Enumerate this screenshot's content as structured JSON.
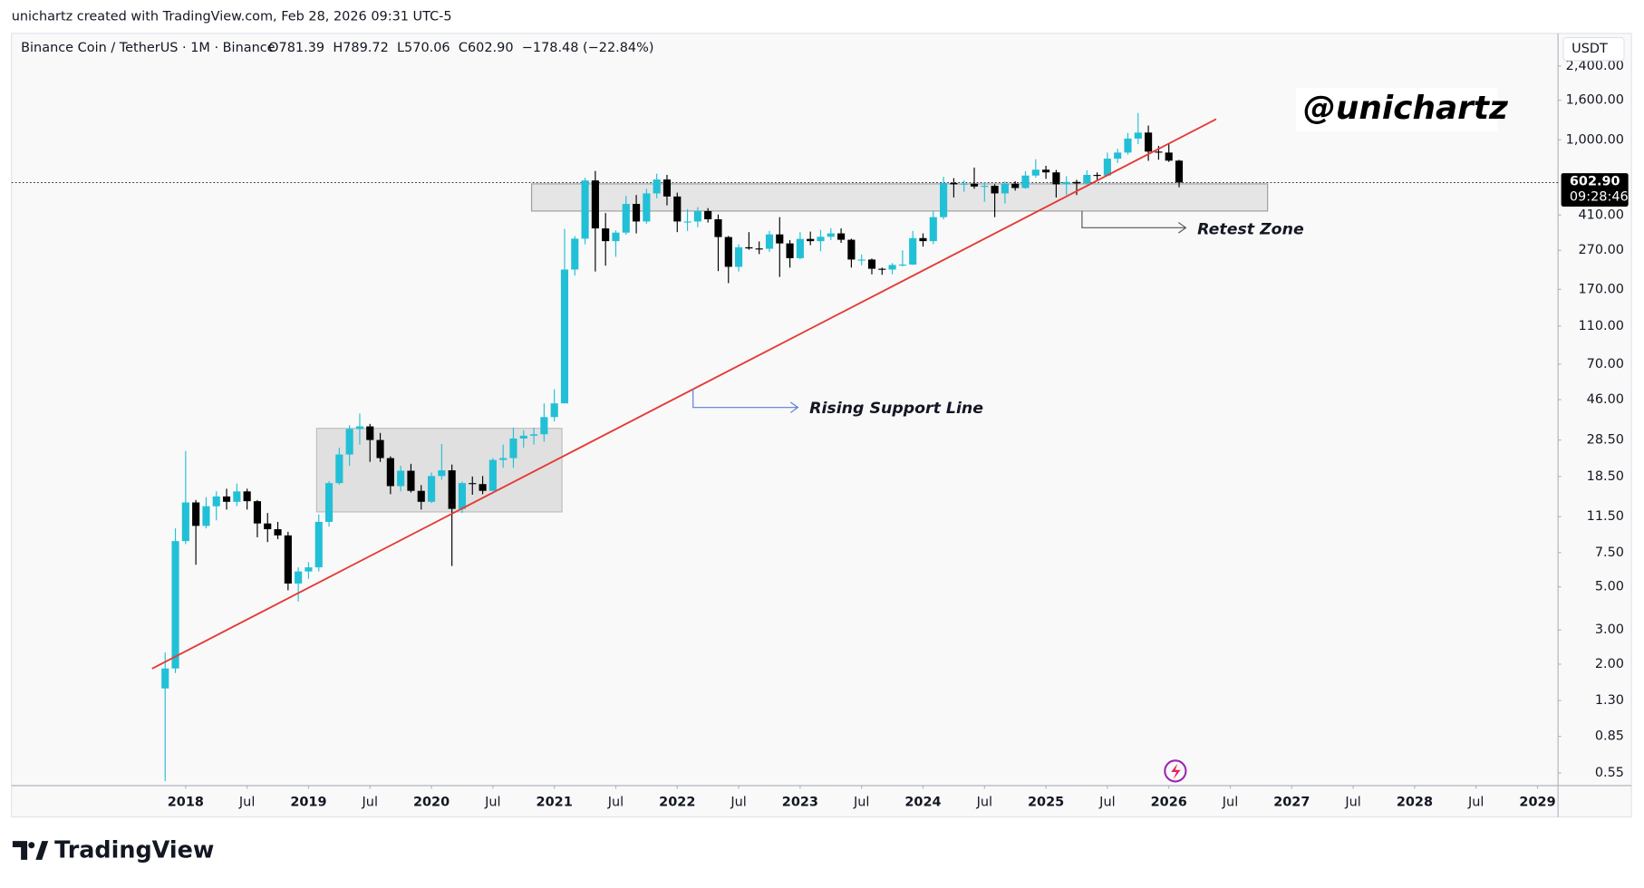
{
  "header": "unichartz created with TradingView.com, Feb 28, 2026 09:31 UTC-5",
  "brand": "TradingView",
  "chart_data": {
    "type": "candlestick",
    "symbol": "Binance Coin / TetherUS · 1M · Binance",
    "ohlc_legend": [
      "O781.39",
      "H789.72",
      "L570.06",
      "C602.90",
      "−178.48 (−22.84%)"
    ],
    "currency": "USDT",
    "watermark": "@unichartz",
    "annotations": [
      "Rising Support Line",
      "Retest Zone"
    ],
    "log_scale": true,
    "up_color": "#22c0d6",
    "down_color": "#000000",
    "x": [
      "2017-11",
      "2017-12",
      "2018-01",
      "2018-02",
      "2018-03",
      "2018-04",
      "2018-05",
      "2018-06",
      "2018-07",
      "2018-08",
      "2018-09",
      "2018-10",
      "2018-11",
      "2018-12",
      "2019-01",
      "2019-02",
      "2019-03",
      "2019-04",
      "2019-05",
      "2019-06",
      "2019-07",
      "2019-08",
      "2019-09",
      "2019-10",
      "2019-11",
      "2019-12",
      "2020-01",
      "2020-02",
      "2020-03",
      "2020-04",
      "2020-05",
      "2020-06",
      "2020-07",
      "2020-08",
      "2020-09",
      "2020-10",
      "2020-11",
      "2020-12",
      "2021-01",
      "2021-02",
      "2021-03",
      "2021-04",
      "2021-05",
      "2021-06",
      "2021-07",
      "2021-08",
      "2021-09",
      "2021-10",
      "2021-11",
      "2021-12",
      "2022-01",
      "2022-02",
      "2022-03",
      "2022-04",
      "2022-05",
      "2022-06",
      "2022-07",
      "2022-08",
      "2022-09",
      "2022-10",
      "2022-11",
      "2022-12",
      "2023-01",
      "2023-02",
      "2023-03",
      "2023-04",
      "2023-05",
      "2023-06",
      "2023-07",
      "2023-08",
      "2023-09",
      "2023-10",
      "2023-11",
      "2023-12",
      "2024-01",
      "2024-02",
      "2024-03",
      "2024-04",
      "2024-05",
      "2024-06",
      "2024-07",
      "2024-08",
      "2024-09",
      "2024-10",
      "2024-11",
      "2024-12",
      "2025-01",
      "2025-02",
      "2025-03",
      "2025-04",
      "2025-05",
      "2025-06",
      "2025-07",
      "2025-08",
      "2025-09",
      "2025-10",
      "2025-11",
      "2025-12",
      "2026-01",
      "2026-02"
    ],
    "open": [
      1.5,
      1.9,
      8.6,
      13.6,
      10.3,
      13,
      14.6,
      13.7,
      15.5,
      13.8,
      10.6,
      9.9,
      9.2,
      5.2,
      6,
      6.3,
      10.8,
      17.1,
      24,
      32.5,
      33.5,
      28.5,
      23,
      16.5,
      19.8,
      15.6,
      13.7,
      18.6,
      19.9,
      12.6,
      17.1,
      16.9,
      15.6,
      22.5,
      23,
      29,
      30,
      30.5,
      37.4,
      44,
      215,
      310,
      618,
      350,
      301,
      333,
      468,
      380,
      530,
      625,
      511,
      380,
      380,
      430,
      390,
      316,
      222,
      280,
      276,
      275,
      326,
      293,
      246,
      309,
      301,
      317,
      330,
      306,
      242,
      242,
      217,
      215,
      227,
      228,
      312,
      301,
      400,
      600,
      590,
      595,
      575,
      580,
      530,
      595,
      565,
      655,
      702,
      680,
      590,
      607,
      597,
      660,
      655,
      800,
      860,
      1015,
      1090,
      870,
      860,
      781.39
    ],
    "high": [
      2.3,
      10,
      25,
      14,
      14.5,
      15.5,
      16,
      17,
      16,
      14,
      12,
      10.8,
      9.6,
      6.3,
      6.7,
      11.8,
      17.5,
      26,
      34,
      39,
      34.5,
      31,
      23.5,
      21,
      21.5,
      16.7,
      19.4,
      27.2,
      21.3,
      17.4,
      18.5,
      18.6,
      23,
      27,
      33,
      32,
      33,
      44,
      52,
      348,
      320,
      638,
      692,
      420,
      342,
      515,
      520,
      560,
      670,
      660,
      535,
      440,
      450,
      445,
      413,
      320,
      290,
      335,
      300,
      340,
      400,
      305,
      335,
      337,
      344,
      351,
      350,
      310,
      257,
      245,
      220,
      232,
      270,
      340,
      330,
      430,
      645,
      635,
      618,
      720,
      605,
      590,
      610,
      612,
      690,
      795,
      735,
      700,
      650,
      623,
      697,
      680,
      860,
      900,
      1085,
      1375,
      1185,
      930,
      960,
      789.72
    ],
    "low": [
      0.5,
      1.8,
      8.3,
      6.5,
      10,
      11,
      12.5,
      13,
      12.5,
      9,
      8.5,
      8.8,
      4.8,
      4.2,
      5.5,
      6,
      10.2,
      16.8,
      21,
      27,
      22,
      22,
      15,
      15.5,
      15.3,
      12.5,
      13.5,
      17.8,
      6.4,
      12,
      14.9,
      15,
      15.6,
      20.5,
      20.5,
      26,
      27,
      28,
      35.5,
      44,
      200,
      290,
      210,
      225,
      250,
      325,
      330,
      370,
      500,
      460,
      335,
      340,
      355,
      375,
      211,
      183,
      210,
      272,
      258,
      265,
      197,
      220,
      243,
      287,
      267,
      305,
      295,
      220,
      226,
      203,
      202,
      203,
      223,
      227,
      282,
      290,
      390,
      505,
      540,
      560,
      480,
      400,
      470,
      548,
      560,
      640,
      630,
      505,
      520,
      520,
      590,
      615,
      650,
      760,
      840,
      950,
      780,
      790,
      770,
      570.06
    ],
    "close": [
      1.9,
      8.6,
      13.6,
      10.3,
      13,
      14.6,
      13.7,
      15.5,
      13.8,
      10.6,
      9.9,
      9.2,
      5.2,
      6,
      6.3,
      10.8,
      17.1,
      24,
      32.5,
      33.5,
      28.5,
      23,
      16.5,
      19.8,
      15.6,
      13.7,
      18.6,
      19.9,
      12.6,
      17.1,
      16.9,
      15.6,
      22.5,
      23,
      29,
      30,
      30.5,
      37.4,
      44,
      215,
      310,
      618,
      350,
      301,
      333,
      468,
      380,
      530,
      625,
      511,
      380,
      380,
      430,
      390,
      316,
      222,
      280,
      276,
      275,
      326,
      293,
      246,
      309,
      301,
      317,
      330,
      306,
      242,
      242,
      217,
      215,
      227,
      228,
      312,
      301,
      400,
      600,
      590,
      595,
      575,
      580,
      530,
      595,
      565,
      655,
      702,
      680,
      590,
      607,
      597,
      660,
      655,
      800,
      860,
      1015,
      1090,
      870,
      860,
      781.39,
      602.9
    ],
    "last_price": {
      "value": 602.9,
      "label": "602.90"
    },
    "countdown": "09:28:46",
    "xlim": [
      "2016-08",
      "2029-03"
    ],
    "xticks": [
      {
        "value": "2018-01",
        "label": "2018"
      },
      {
        "value": "2018-07",
        "label": "Jul"
      },
      {
        "value": "2019-01",
        "label": "2019"
      },
      {
        "value": "2019-07",
        "label": "Jul"
      },
      {
        "value": "2020-01",
        "label": "2020"
      },
      {
        "value": "2020-07",
        "label": "Jul"
      },
      {
        "value": "2021-01",
        "label": "2021"
      },
      {
        "value": "2021-07",
        "label": "Jul"
      },
      {
        "value": "2022-01",
        "label": "2022"
      },
      {
        "value": "2022-07",
        "label": "Jul"
      },
      {
        "value": "2023-01",
        "label": "2023"
      },
      {
        "value": "2023-07",
        "label": "Jul"
      },
      {
        "value": "2024-01",
        "label": "2024"
      },
      {
        "value": "2024-07",
        "label": "Jul"
      },
      {
        "value": "2025-01",
        "label": "2025"
      },
      {
        "value": "2025-07",
        "label": "Jul"
      },
      {
        "value": "2026-01",
        "label": "2026"
      },
      {
        "value": "2026-07",
        "label": "Jul"
      },
      {
        "value": "2027-01",
        "label": "2027"
      },
      {
        "value": "2027-07",
        "label": "Jul"
      },
      {
        "value": "2028-01",
        "label": "2028"
      },
      {
        "value": "2028-07",
        "label": "Jul"
      },
      {
        "value": "2029-01",
        "label": "2029"
      }
    ],
    "ylim": [
      0.474,
      3530
    ],
    "yticks": [
      {
        "value": 2400,
        "label": "2,400.00"
      },
      {
        "value": 1600,
        "label": "1,600.00"
      },
      {
        "value": 1000,
        "label": "1,000.00"
      },
      {
        "value": 410,
        "label": "410.00"
      },
      {
        "value": 270,
        "label": "270.00"
      },
      {
        "value": 170,
        "label": "170.00"
      },
      {
        "value": 110,
        "label": "110.00"
      },
      {
        "value": 70,
        "label": "70.00"
      },
      {
        "value": 46,
        "label": "46.00"
      },
      {
        "value": 28.5,
        "label": "28.50"
      },
      {
        "value": 18.5,
        "label": "18.50"
      },
      {
        "value": 11.5,
        "label": "11.50"
      },
      {
        "value": 7.5,
        "label": "7.50"
      },
      {
        "value": 5,
        "label": "5.00"
      },
      {
        "value": 3,
        "label": "3.00"
      },
      {
        "value": 2,
        "label": "2.00"
      },
      {
        "value": 1.3,
        "label": "1.30"
      },
      {
        "value": 0.85,
        "label": "0.85"
      },
      {
        "value": 0.55,
        "label": "0.55"
      }
    ]
  }
}
